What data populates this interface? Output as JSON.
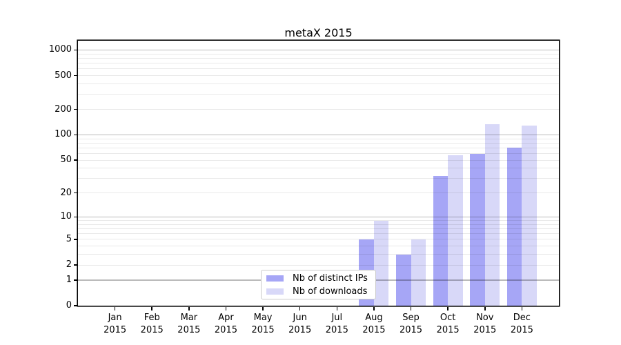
{
  "chart_data": {
    "type": "bar",
    "title": "metaX 2015",
    "categories": [
      "Jan",
      "Feb",
      "Mar",
      "Apr",
      "May",
      "Jun",
      "Jul",
      "Aug",
      "Sep",
      "Oct",
      "Nov",
      "Dec"
    ],
    "category_sublabel": "2015",
    "series": [
      {
        "name": "Nb of distinct IPs",
        "color": "#a6a6f6",
        "values": [
          0,
          0,
          0,
          0,
          0,
          0,
          0,
          5,
          3,
          32,
          60,
          71
        ]
      },
      {
        "name": "Nb of downloads",
        "color": "#d8d8f8",
        "values": [
          0,
          0,
          0,
          0,
          0,
          0,
          0,
          9,
          5,
          57,
          134,
          128
        ]
      }
    ],
    "yscale": "log10(1+x)",
    "ylim": [
      0,
      1285
    ],
    "ytick_values": [
      0,
      1,
      2,
      5,
      10,
      20,
      50,
      100,
      200,
      500,
      1000
    ],
    "ytick_labels": [
      "0",
      "1",
      "2",
      "5",
      "10",
      "20",
      "50",
      "100",
      "200",
      "500",
      "1000"
    ],
    "major_grid_values": [
      1,
      10,
      100,
      1000
    ],
    "grid": true,
    "legend_position": "lower-center"
  },
  "colors": {
    "background": "#ffffff",
    "axis": "#000000",
    "major_grid": "rgba(0,0,0,0.27)",
    "minor_grid": "rgba(0,0,0,0.085)",
    "legend_border": "#c9c9c9"
  }
}
